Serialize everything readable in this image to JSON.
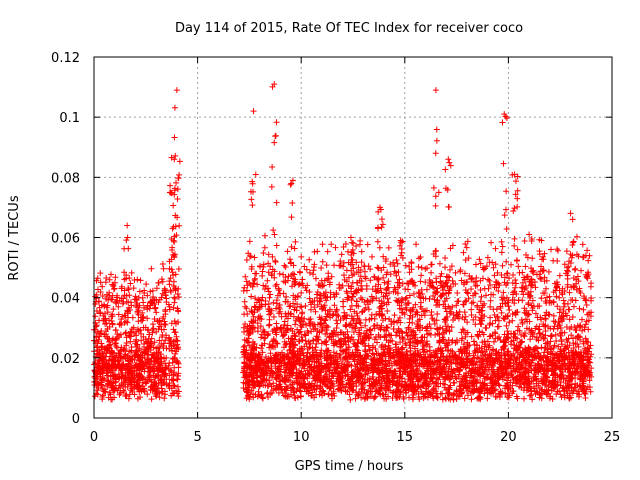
{
  "chart_data": {
    "type": "scatter",
    "title": "Day 114 of 2015, Rate Of TEC Index for receiver coco",
    "xlabel": "GPS time / hours",
    "ylabel": "ROTI / TECUs",
    "xlim": [
      0,
      25
    ],
    "ylim": [
      0,
      0.12
    ],
    "x_ticks": [
      "0",
      "5",
      "10",
      "15",
      "20",
      "25"
    ],
    "y_ticks": [
      "0",
      "0.02",
      "0.04",
      "0.06",
      "0.08",
      "0.1",
      "0.12"
    ],
    "grid": true,
    "marker": "plus",
    "series_color": "#ff0000",
    "density_profile": [
      {
        "x": [
          0.0,
          3.5
        ],
        "y_base": 0.015,
        "y_spread": 0.02
      },
      {
        "x": [
          3.6,
          4.1
        ],
        "y_base": 0.02,
        "y_spread": 0.04
      },
      {
        "x": [
          7.2,
          24.0
        ],
        "y_base": 0.015,
        "y_spread": 0.025
      }
    ],
    "peaks": [
      {
        "x": 4.0,
        "y": 0.109
      },
      {
        "x": 8.7,
        "y": 0.111
      },
      {
        "x": 7.7,
        "y": 0.102
      },
      {
        "x": 16.5,
        "y": 0.109
      },
      {
        "x": 19.8,
        "y": 0.101
      },
      {
        "x": 17.1,
        "y": 0.086
      },
      {
        "x": 20.3,
        "y": 0.081
      },
      {
        "x": 9.6,
        "y": 0.079
      },
      {
        "x": 23.0,
        "y": 0.068
      },
      {
        "x": 13.8,
        "y": 0.07
      },
      {
        "x": 1.6,
        "y": 0.064
      },
      {
        "x": 21.0,
        "y": 0.061
      },
      {
        "x": 12.4,
        "y": 0.06
      },
      {
        "x": 14.8,
        "y": 0.059
      }
    ]
  }
}
